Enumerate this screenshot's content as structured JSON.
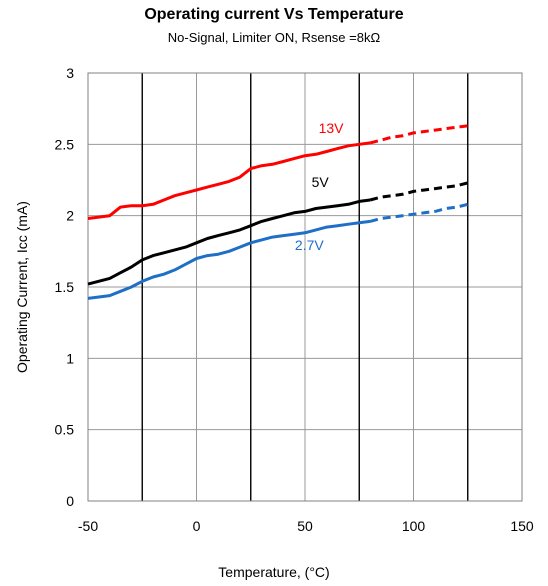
{
  "chart_data": {
    "type": "line",
    "title": "Operating current Vs Temperature",
    "subtitle": "No-Signal, Limiter ON, Rsense =8kΩ",
    "xlabel": "Temperature, (°C)",
    "ylabel": "Operating Current, Icc (mA)",
    "xlim": [
      -50,
      150
    ],
    "ylim": [
      0,
      3
    ],
    "x_ticks": [
      "-50",
      "0",
      "50",
      "100",
      "150"
    ],
    "y_ticks": [
      "0",
      "0.5",
      "1",
      "1.5",
      "2",
      "2.5",
      "3"
    ],
    "vertical_gridlines_at": [
      -25,
      25,
      75,
      125
    ],
    "series": [
      {
        "name": "13V",
        "color": "#ff0000",
        "points": [
          [
            -50,
            1.98
          ],
          [
            -45,
            1.99
          ],
          [
            -40,
            2.0
          ],
          [
            -35,
            2.06
          ],
          [
            -30,
            2.07
          ],
          [
            -25,
            2.07
          ],
          [
            -20,
            2.08
          ],
          [
            -15,
            2.11
          ],
          [
            -10,
            2.14
          ],
          [
            -5,
            2.16
          ],
          [
            0,
            2.18
          ],
          [
            5,
            2.2
          ],
          [
            10,
            2.22
          ],
          [
            15,
            2.24
          ],
          [
            20,
            2.27
          ],
          [
            25,
            2.33
          ],
          [
            30,
            2.35
          ],
          [
            35,
            2.36
          ],
          [
            40,
            2.38
          ],
          [
            45,
            2.4
          ],
          [
            50,
            2.42
          ],
          [
            55,
            2.43
          ],
          [
            60,
            2.45
          ],
          [
            65,
            2.47
          ],
          [
            70,
            2.49
          ],
          [
            75,
            2.5
          ],
          [
            80,
            2.51
          ],
          [
            85,
            2.53
          ],
          [
            90,
            2.55
          ],
          [
            95,
            2.56
          ],
          [
            100,
            2.58
          ],
          [
            105,
            2.59
          ],
          [
            110,
            2.6
          ],
          [
            115,
            2.61
          ],
          [
            120,
            2.62
          ],
          [
            125,
            2.63
          ]
        ]
      },
      {
        "name": "5V",
        "color": "#000000",
        "points": [
          [
            -50,
            1.52
          ],
          [
            -40,
            1.56
          ],
          [
            -35,
            1.6
          ],
          [
            -30,
            1.64
          ],
          [
            -25,
            1.69
          ],
          [
            -20,
            1.72
          ],
          [
            -15,
            1.74
          ],
          [
            -10,
            1.76
          ],
          [
            -5,
            1.78
          ],
          [
            0,
            1.81
          ],
          [
            5,
            1.84
          ],
          [
            10,
            1.86
          ],
          [
            15,
            1.88
          ],
          [
            20,
            1.9
          ],
          [
            25,
            1.93
          ],
          [
            30,
            1.96
          ],
          [
            35,
            1.98
          ],
          [
            40,
            2.0
          ],
          [
            45,
            2.02
          ],
          [
            50,
            2.03
          ],
          [
            55,
            2.05
          ],
          [
            60,
            2.06
          ],
          [
            65,
            2.07
          ],
          [
            70,
            2.08
          ],
          [
            75,
            2.1
          ],
          [
            80,
            2.11
          ],
          [
            85,
            2.13
          ],
          [
            90,
            2.14
          ],
          [
            95,
            2.15
          ],
          [
            100,
            2.17
          ],
          [
            105,
            2.18
          ],
          [
            110,
            2.19
          ],
          [
            115,
            2.2
          ],
          [
            120,
            2.21
          ],
          [
            125,
            2.23
          ]
        ]
      },
      {
        "name": "2.7V",
        "color": "#1f6fc7",
        "points": [
          [
            -50,
            1.42
          ],
          [
            -40,
            1.44
          ],
          [
            -35,
            1.47
          ],
          [
            -30,
            1.5
          ],
          [
            -25,
            1.54
          ],
          [
            -20,
            1.57
          ],
          [
            -15,
            1.59
          ],
          [
            -10,
            1.62
          ],
          [
            -5,
            1.66
          ],
          [
            0,
            1.7
          ],
          [
            5,
            1.72
          ],
          [
            10,
            1.73
          ],
          [
            15,
            1.75
          ],
          [
            20,
            1.78
          ],
          [
            25,
            1.81
          ],
          [
            30,
            1.83
          ],
          [
            35,
            1.85
          ],
          [
            40,
            1.86
          ],
          [
            45,
            1.87
          ],
          [
            50,
            1.88
          ],
          [
            55,
            1.9
          ],
          [
            60,
            1.92
          ],
          [
            65,
            1.93
          ],
          [
            70,
            1.94
          ],
          [
            75,
            1.95
          ],
          [
            80,
            1.96
          ],
          [
            85,
            1.98
          ],
          [
            90,
            1.99
          ],
          [
            95,
            2.0
          ],
          [
            100,
            2.01
          ],
          [
            105,
            2.02
          ],
          [
            110,
            2.03
          ],
          [
            115,
            2.05
          ],
          [
            120,
            2.06
          ],
          [
            125,
            2.08
          ]
        ]
      }
    ],
    "solid_until_x": 80,
    "dashed_from_x": 80,
    "grid": true,
    "legend": "none"
  }
}
